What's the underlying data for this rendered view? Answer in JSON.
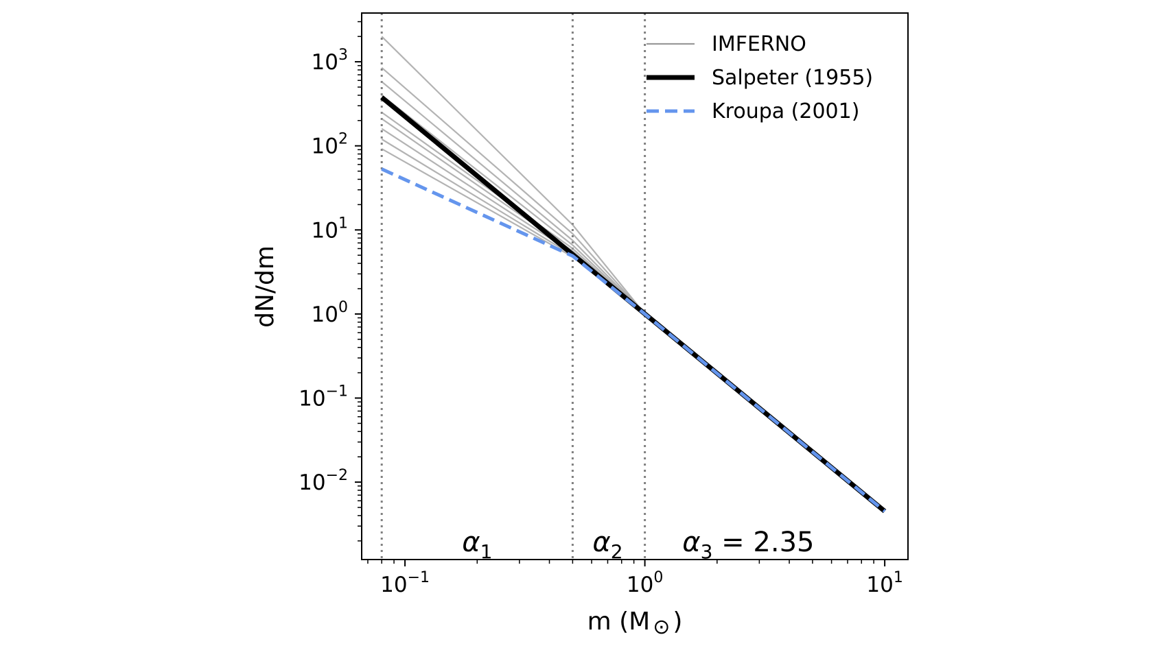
{
  "chart_data": {
    "type": "line",
    "xlabel": "m (M",
    "xlabel_symbol": "⊙",
    "xlabel_close": ")",
    "ylabel": "dN/dm",
    "xscale": "log",
    "yscale": "log",
    "xlim": [
      0.066,
      12.5
    ],
    "ylim": [
      0.0012,
      3800
    ],
    "x_ticks": [
      {
        "value": 0.1,
        "base": "10",
        "exp": "−1"
      },
      {
        "value": 1,
        "base": "10",
        "exp": "0"
      },
      {
        "value": 10,
        "base": "10",
        "exp": "1"
      }
    ],
    "y_ticks": [
      {
        "value": 0.01,
        "base": "10",
        "exp": "−2"
      },
      {
        "value": 0.1,
        "base": "10",
        "exp": "−1"
      },
      {
        "value": 1,
        "base": "10",
        "exp": "0"
      },
      {
        "value": 10,
        "base": "10",
        "exp": "1"
      },
      {
        "value": 100,
        "base": "10",
        "exp": "2"
      },
      {
        "value": 1000,
        "base": "10",
        "exp": "3"
      }
    ],
    "vlines": [
      0.08,
      0.5,
      1.0
    ],
    "legend_position": "top-right",
    "legend": [
      {
        "label": "IMFERNO",
        "style": "thin-gray"
      },
      {
        "label": "Salpeter (1955)",
        "style": "thick-black"
      },
      {
        "label": "Kroupa (2001)",
        "style": "dashed-blue"
      }
    ],
    "region_labels": [
      {
        "symbol": "α",
        "sub": "1",
        "suffix": "",
        "x": 0.2
      },
      {
        "symbol": "α",
        "sub": "2",
        "suffix": "",
        "x": 0.7
      },
      {
        "symbol": "α",
        "sub": "3",
        "suffix": " = 2.35",
        "x": 2.7
      }
    ],
    "series": [
      {
        "name": "Salpeter (1955)",
        "x": [
          0.08,
          10
        ],
        "y": [
          378,
          0.0045
        ],
        "color": "#000000"
      },
      {
        "name": "Kroupa (2001)",
        "x": [
          0.08,
          0.5,
          1,
          10
        ],
        "y": [
          53,
          4.9,
          1.0,
          0.0045
        ],
        "color": "#6495ed"
      },
      {
        "name": "IMFERNO",
        "x": [
          0.08,
          0.5,
          1,
          10
        ],
        "y": [
          2000,
          11.5,
          1.0,
          0.0045
        ],
        "color": "#999999"
      },
      {
        "name": "IMFERNO",
        "x": [
          0.08,
          0.5,
          1,
          10
        ],
        "y": [
          850,
          9.0,
          1.0,
          0.0045
        ],
        "color": "#999999"
      },
      {
        "name": "IMFERNO",
        "x": [
          0.08,
          0.5,
          1,
          10
        ],
        "y": [
          580,
          7.5,
          1.0,
          0.0045
        ],
        "color": "#999999"
      },
      {
        "name": "IMFERNO",
        "x": [
          0.08,
          0.5,
          1,
          10
        ],
        "y": [
          400,
          6.6,
          1.0,
          0.0045
        ],
        "color": "#999999"
      },
      {
        "name": "IMFERNO",
        "x": [
          0.08,
          0.5,
          1,
          10
        ],
        "y": [
          250,
          6.0,
          1.0,
          0.0045
        ],
        "color": "#999999"
      },
      {
        "name": "IMFERNO",
        "x": [
          0.08,
          0.5,
          1,
          10
        ],
        "y": [
          210,
          5.6,
          1.0,
          0.0045
        ],
        "color": "#999999"
      },
      {
        "name": "IMFERNO",
        "x": [
          0.08,
          0.5,
          1,
          10
        ],
        "y": [
          160,
          5.3,
          1.0,
          0.0045
        ],
        "color": "#999999"
      },
      {
        "name": "IMFERNO",
        "x": [
          0.08,
          0.5,
          1,
          10
        ],
        "y": [
          120,
          5.0,
          1.0,
          0.0045
        ],
        "color": "#999999"
      },
      {
        "name": "IMFERNO",
        "x": [
          0.08,
          0.5,
          1,
          10
        ],
        "y": [
          92,
          4.8,
          1.0,
          0.0045
        ],
        "color": "#999999"
      }
    ]
  }
}
